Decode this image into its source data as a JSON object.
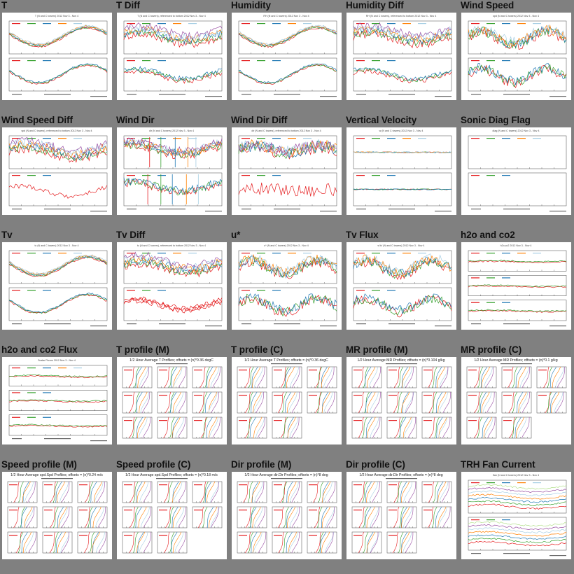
{
  "page": {
    "background": "#808080",
    "thumb_background": "#ffffff"
  },
  "series_colors": [
    "#e41a1c",
    "#33a02c",
    "#1f78b4",
    "#ff7f00",
    "#a6cee3",
    "#984ea3",
    "#b2df8a",
    "#ffd92f"
  ],
  "thumbnails": [
    {
      "title": "T",
      "kind": "two",
      "subtitle": "T (N and C towers) 2012 Nov 3 - Nov 4"
    },
    {
      "title": "T Diff",
      "kind": "diff",
      "subtitle": "T (N and C towers), referenced to bottom 2012 Nov 3 - Nov 4"
    },
    {
      "title": "Humidity",
      "kind": "two",
      "subtitle": "RH (N and C towers) 2012 Nov 3 - Nov 4"
    },
    {
      "title": "Humidity Diff",
      "kind": "diff",
      "subtitle": "RH (N and C towers), referenced to bottom 2012 Nov 3 - Nov 4"
    },
    {
      "title": "Wind Speed",
      "kind": "noisy",
      "subtitle": "spd (N and C towers) 2012 Nov 3 - Nov 4"
    },
    {
      "title": "Wind Speed Diff",
      "kind": "diff",
      "subtitle": "spd (N and C towers), referenced to bottom 2012 Nov 3 - Nov 4"
    },
    {
      "title": "Wind Dir",
      "kind": "dir",
      "subtitle": "dir (N and C towers) 2012 Nov 3 - Nov 4"
    },
    {
      "title": "Wind Dir Diff",
      "kind": "dirdiff",
      "subtitle": "dir (N and C towers), referenced to bottom 2012 Nov 3 - Nov 4"
    },
    {
      "title": "Vertical Velocity",
      "kind": "flat",
      "subtitle": "w (N and C towers) 2012 Nov 3 - Nov 4"
    },
    {
      "title": "Sonic Diag Flag",
      "kind": "empty",
      "subtitle": "diag (N and C towers) 2012 Nov 3 - Nov 4"
    },
    {
      "title": "Tv",
      "kind": "two",
      "subtitle": "tc (N and C towers) 2012 Nov 3 - Nov 4"
    },
    {
      "title": "Tv Diff",
      "kind": "diff",
      "subtitle": "tc (N and C towers), referenced to bottom 2012 Nov 3 - Nov 4"
    },
    {
      "title": "u*",
      "kind": "noisy",
      "subtitle": "u* (N and C towers) 2012 Nov 3 - Nov 4"
    },
    {
      "title": "Tv Flux",
      "kind": "noisy",
      "subtitle": "w'tc' (N and C towers) 2012 Nov 3 - Nov 4"
    },
    {
      "title": "h2o and co2",
      "kind": "three",
      "subtitle": "h2o,co2 2012 Nov 3 - Nov 4"
    },
    {
      "title": "h2o and co2 Flux",
      "kind": "three",
      "subtitle": "Scalar Fluxes 2012 Nov 3 - Nov 4"
    },
    {
      "title": "T profile (M)",
      "kind": "profile",
      "subtitle": "1/2 Hour Average T Profiles; offsets = (n)*0.36 degC"
    },
    {
      "title": "T profile (C)",
      "kind": "profile",
      "subtitle": "1/2 Hour Average T Profiles; offsets = (n)*0.36 degC"
    },
    {
      "title": "MR profile (M)",
      "kind": "profile",
      "subtitle": "1/2 Hour Average MR Profiles; offsets = (n)*0.104 g/kg"
    },
    {
      "title": "MR profile (C)",
      "kind": "profile",
      "subtitle": "1/2 Hour Average MR Profiles; offsets = (n)*0.1 g/kg"
    },
    {
      "title": "Speed profile (M)",
      "kind": "profile",
      "subtitle": "1/2 Hour Average spd.Spd Profiles; offsets = (n)*0.24 m/s"
    },
    {
      "title": "Speed profile (C)",
      "kind": "profile",
      "subtitle": "1/2 Hour Average spd.Spd Profiles; offsets = (n)*0.18 m/s"
    },
    {
      "title": "Dir profile (M)",
      "kind": "profile",
      "subtitle": "1/2 Hour Average dir.Dir Profiles; offsets = (n)*8 deg"
    },
    {
      "title": "Dir profile (C)",
      "kind": "profile",
      "subtitle": "1/2 Hour Average dir.Dir Profiles; offsets = (n)*8 deg"
    },
    {
      "title": "TRH Fan Current",
      "kind": "fan",
      "subtitle": "Ifan (N and C towers) 2012 Nov 3 - Nov 4"
    }
  ]
}
